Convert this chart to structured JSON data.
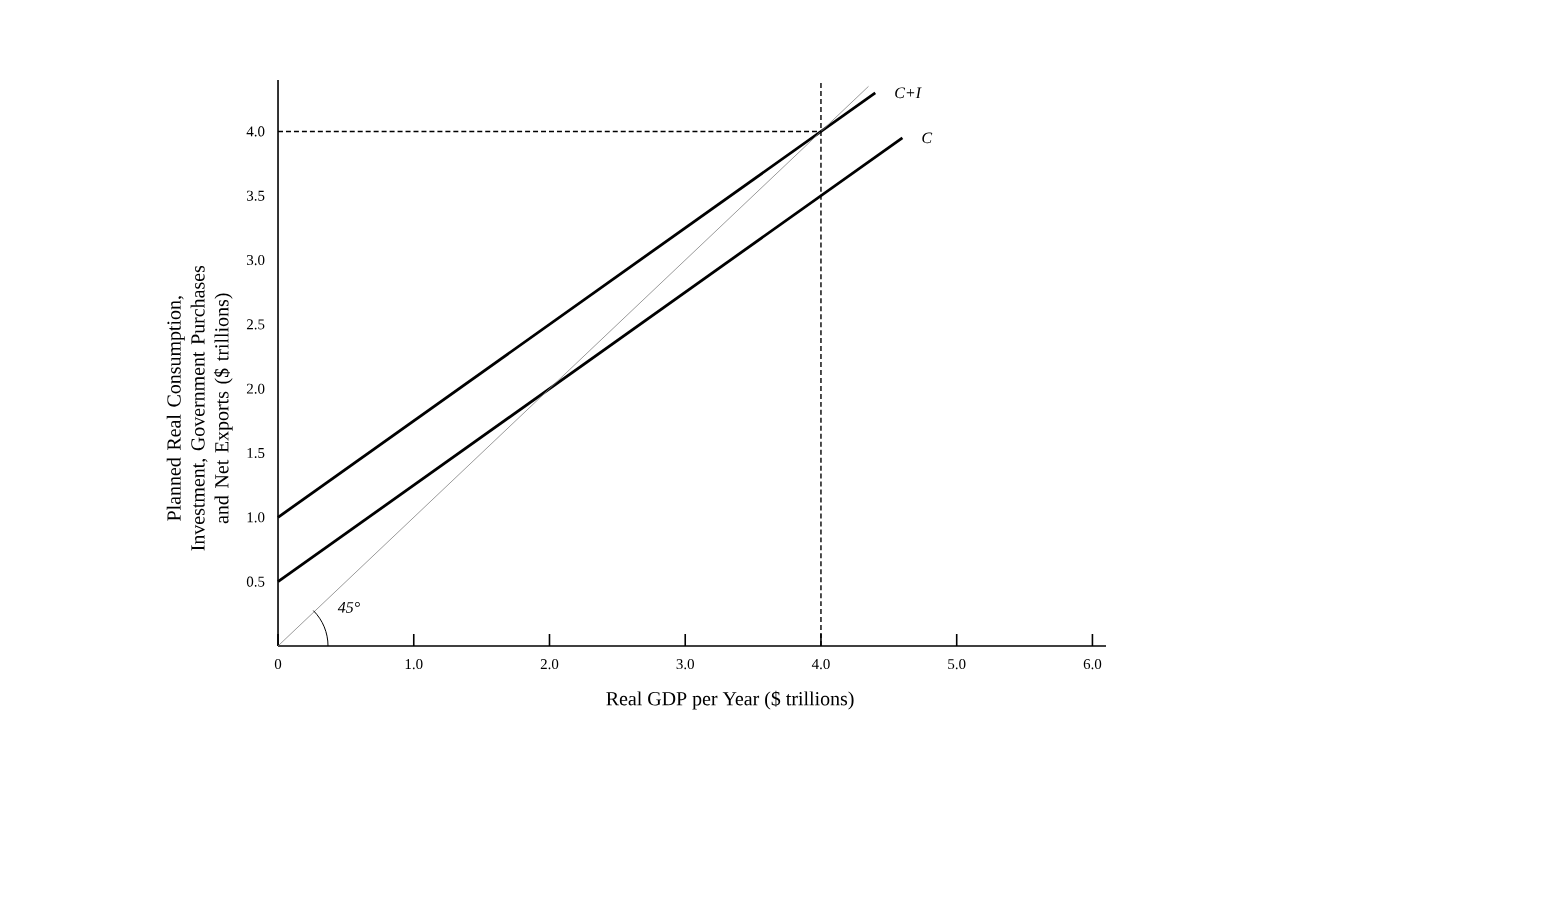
{
  "chart_data": {
    "type": "line",
    "xlabel": "Real GDP per Year ($ trillions)",
    "ylabel": "Planned Real Consumption, Investment, Government Purchases and Net Exports ($ trillions)",
    "xlim": [
      0,
      6.1
    ],
    "ylim": [
      0,
      4.4
    ],
    "xticks": [
      0,
      {
        "value": 1,
        "label": "1.0"
      },
      {
        "value": 2,
        "label": "2.0"
      },
      {
        "value": 3,
        "label": "3.0"
      },
      {
        "value": 4,
        "label": "4.0"
      },
      {
        "value": 5,
        "label": "5.0"
      },
      {
        "value": 6,
        "label": "6.0"
      }
    ],
    "yticks": [
      0.5,
      {
        "value": 1,
        "label": "1.0"
      },
      1.5,
      {
        "value": 2,
        "label": "2.0"
      },
      2.5,
      {
        "value": 3,
        "label": "3.0"
      },
      3.5,
      {
        "value": 4,
        "label": "4.0"
      }
    ],
    "grid": false,
    "marker": "none",
    "series": [
      {
        "color": "#000000",
        "line_style": "solid",
        "x": [
          0,
          4.4
        ],
        "values": [
          1.0,
          4.3
        ]
      },
      {
        "color": "#000000",
        "line_style": "solid",
        "x": [
          0,
          4.6
        ],
        "values": [
          0.5,
          3.95
        ]
      },
      {
        "color": "#808080",
        "line_style": "solid",
        "x": [
          0,
          4.35
        ],
        "values": [
          0,
          4.35
        ]
      },
      {
        "color": "#000000",
        "line_style": "dashed",
        "x": [
          0,
          4
        ],
        "values": [
          4,
          4
        ]
      }
    ],
    "ref_lines": [
      {
        "axis": "x",
        "value": 4,
        "color": "#000000",
        "line_style": "dashed"
      }
    ],
    "annotations": [
      {
        "text": "C+I",
        "x": 4.4,
        "y": 4.3
      },
      {
        "text": "C",
        "x": 4.6,
        "y": 3.95
      },
      {
        "text": "45°",
        "x": 0.3,
        "y": 0.3
      }
    ]
  }
}
